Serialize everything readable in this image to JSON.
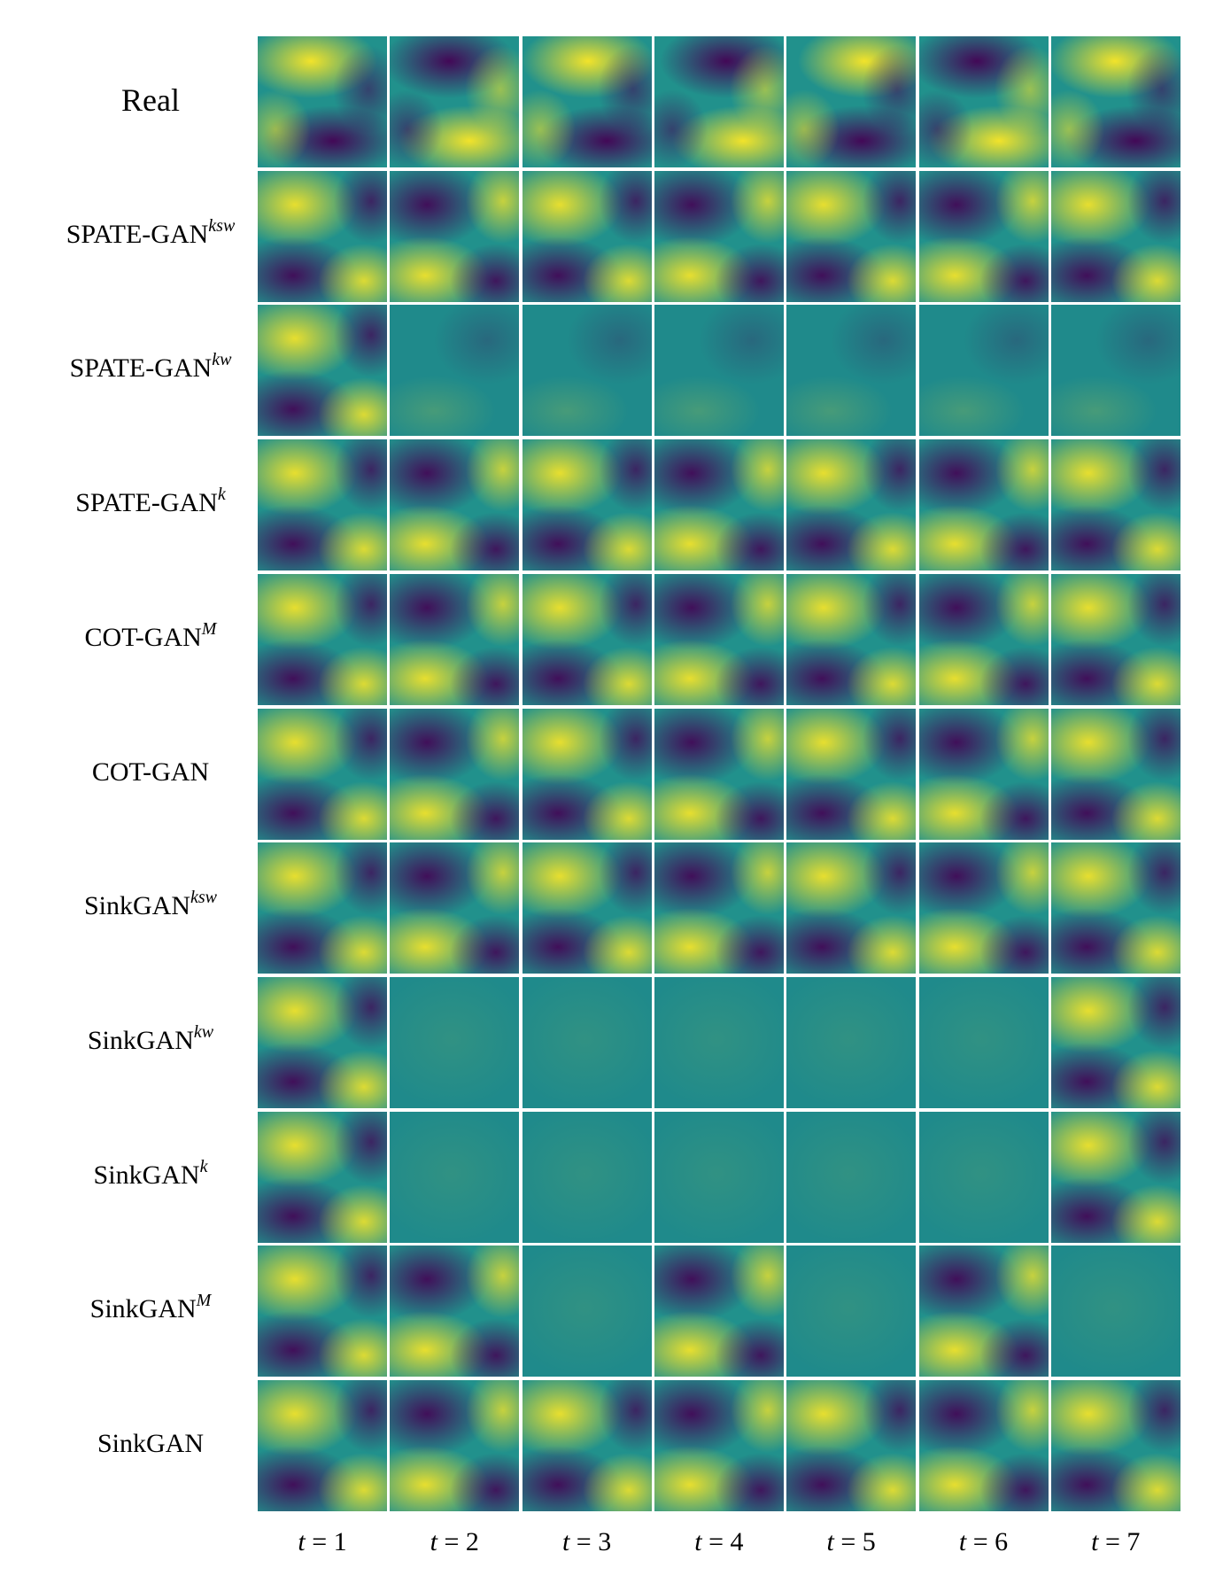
{
  "rows": [
    {
      "name": "Real",
      "sup": ""
    },
    {
      "name": "SPATE-GAN",
      "sup": "ksw"
    },
    {
      "name": "SPATE-GAN",
      "sup": "kw"
    },
    {
      "name": "SPATE-GAN",
      "sup": "k"
    },
    {
      "name": "COT-GAN",
      "sup": "M"
    },
    {
      "name": "COT-GAN",
      "sup": ""
    },
    {
      "name": "SinkGAN",
      "sup": "ksw"
    },
    {
      "name": "SinkGAN",
      "sup": "kw"
    },
    {
      "name": "SinkGAN",
      "sup": "k"
    },
    {
      "name": "SinkGAN",
      "sup": "M"
    },
    {
      "name": "SinkGAN",
      "sup": ""
    }
  ],
  "columns": [
    {
      "var": "t",
      "eq": " = 1"
    },
    {
      "var": "t",
      "eq": " = 2"
    },
    {
      "var": "t",
      "eq": " = 3"
    },
    {
      "var": "t",
      "eq": " = 4"
    },
    {
      "var": "t",
      "eq": " = 5"
    },
    {
      "var": "t",
      "eq": " = 6"
    },
    {
      "var": "t",
      "eq": " = 7"
    }
  ],
  "colormap": {
    "dark": "#440154",
    "mid": "#21918c",
    "bright": "#fde725",
    "flat": "#1f8a8b"
  }
}
